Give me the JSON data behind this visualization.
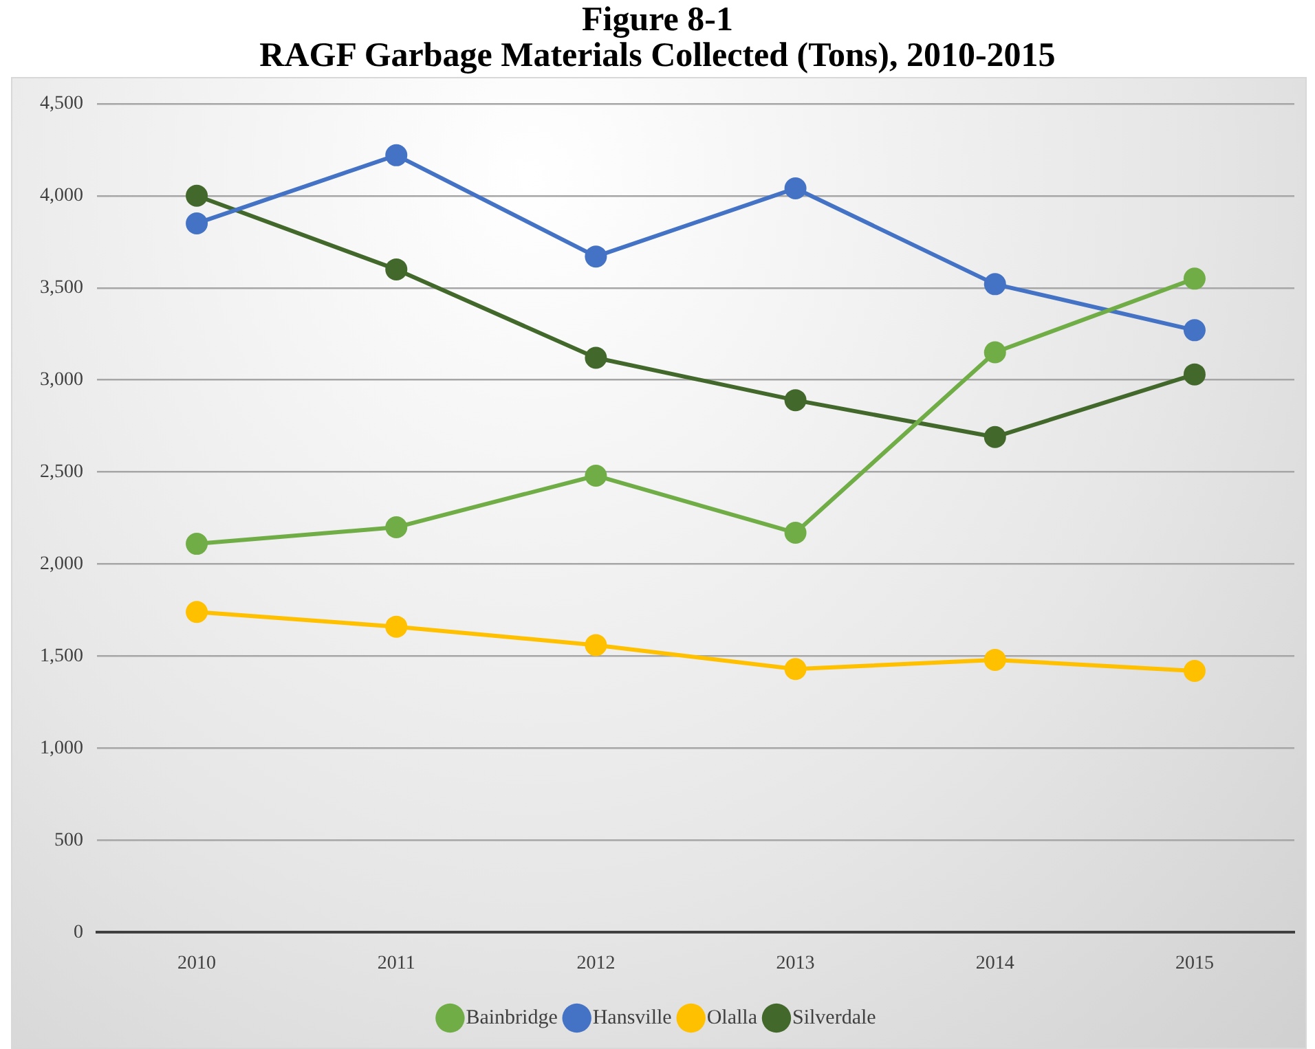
{
  "chart_data": {
    "type": "line",
    "title": "Figure 8-1",
    "subtitle": "RAGF Garbage Materials Collected (Tons), 2010-2015",
    "categories": [
      "2010",
      "2011",
      "2012",
      "2013",
      "2014",
      "2015"
    ],
    "series": [
      {
        "name": "Bainbridge",
        "color": "#70ad47",
        "values": [
          2110,
          2200,
          2480,
          2170,
          3150,
          3550
        ]
      },
      {
        "name": "Hansville",
        "color": "#4472c4",
        "values": [
          3850,
          4220,
          3670,
          4040,
          3520,
          3270
        ]
      },
      {
        "name": "Olalla",
        "color": "#ffc000",
        "values": [
          1740,
          1660,
          1560,
          1430,
          1480,
          1420
        ]
      },
      {
        "name": "Silverdale",
        "color": "#43682b",
        "values": [
          4000,
          3600,
          3120,
          2890,
          2690,
          3030
        ]
      }
    ],
    "ylim": [
      0,
      4500
    ],
    "yticks": [
      {
        "value": 0,
        "label": "0"
      },
      {
        "value": 500,
        "label": "500"
      },
      {
        "value": 1000,
        "label": "1,000"
      },
      {
        "value": 1500,
        "label": "1,500"
      },
      {
        "value": 2000,
        "label": "2,000"
      },
      {
        "value": 2500,
        "label": "2,500"
      },
      {
        "value": 3000,
        "label": "3,000"
      },
      {
        "value": 3500,
        "label": "3,500"
      },
      {
        "value": 4000,
        "label": "4,000"
      },
      {
        "value": 4500,
        "label": "4,500"
      }
    ],
    "grid": "y",
    "legend": "bottom",
    "marker": "circle",
    "line_style": "solid"
  }
}
